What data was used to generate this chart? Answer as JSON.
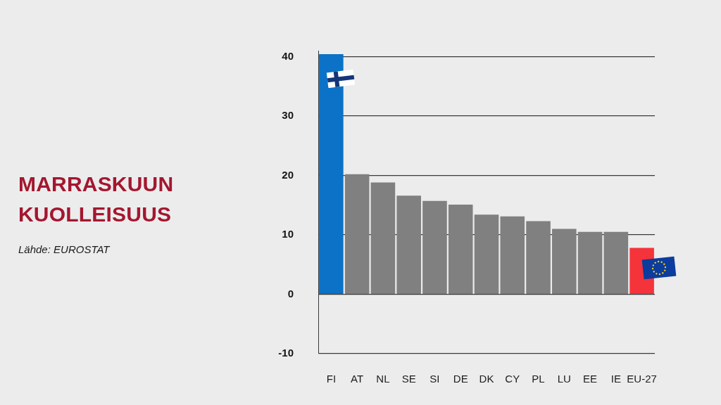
{
  "chart_data": {
    "type": "bar",
    "title": "MARRASKUUN KUOLLEISUUS",
    "annotations": [
      "Lähde: EUROSTAT"
    ],
    "categories": [
      "FI",
      "AT",
      "NL",
      "SE",
      "SI",
      "DE",
      "DK",
      "CY",
      "PL",
      "LU",
      "EE",
      "IE",
      "EU-27"
    ],
    "values": [
      40.4,
      20.2,
      18.8,
      16.6,
      15.7,
      15.1,
      13.4,
      13.1,
      12.3,
      11.0,
      10.5,
      10.5,
      7.8
    ],
    "colors": [
      "#0b72c7",
      "#808080",
      "#808080",
      "#808080",
      "#808080",
      "#808080",
      "#808080",
      "#808080",
      "#808080",
      "#808080",
      "#808080",
      "#808080",
      "#f5333b"
    ],
    "ylim": [
      -10,
      41
    ],
    "yticks": [
      -10,
      0,
      10,
      20,
      30,
      40
    ],
    "grid": "y"
  }
}
